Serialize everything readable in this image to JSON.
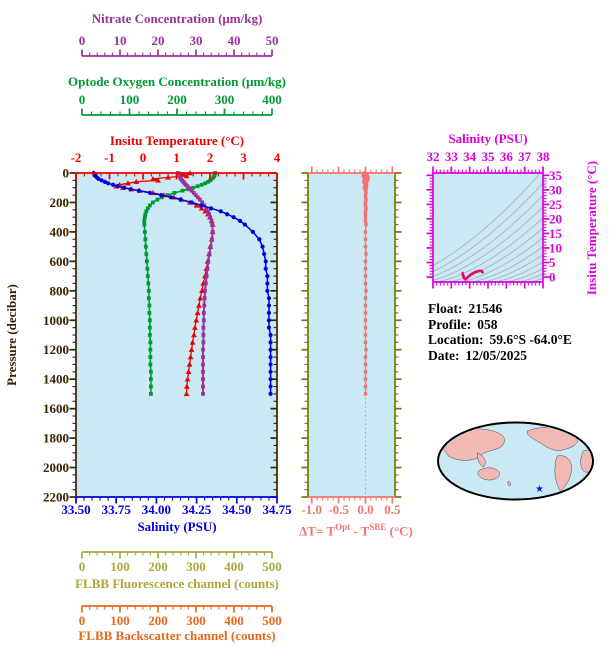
{
  "colors": {
    "plot_background": "#cbe9f4",
    "contours": "#a3aeb4",
    "map_land": "#f3b9b4",
    "map_ocean": "#cbe9f4",
    "map_outline": "#000000",
    "float_marker": "#0022ee",
    "ts_track_outer": "#ee1133",
    "ts_track_inner": "#dd00bb",
    "zero_reference": "#9aa0a6"
  },
  "axes": {
    "nitrate": {
      "label": "Nitrate Concentration (μm/kg)",
      "color": "#993399",
      "min": 0,
      "max": 50,
      "tick_values": [
        0,
        10,
        20,
        30,
        40,
        50
      ],
      "tick_labels": [
        "0",
        "10",
        "20",
        "30",
        "40",
        "50"
      ],
      "minor": 5
    },
    "oxygen": {
      "label": "Optode Oxygen Concentration (μm/kg)",
      "color": "#009933",
      "min": 0,
      "max": 400,
      "tick_values": [
        0,
        100,
        200,
        300,
        400
      ],
      "tick_labels": [
        "0",
        "100",
        "200",
        "300",
        "400"
      ],
      "minor": 5
    },
    "insitu_temp": {
      "label": "Insitu Temperature (°C)",
      "color": "#ee0000",
      "min": -2,
      "max": 4,
      "tick_values": [
        -2,
        -1,
        0,
        1,
        2,
        3,
        4
      ],
      "tick_labels": [
        "-2",
        "-1",
        "0",
        "1",
        "2",
        "3",
        "4"
      ],
      "minor": 4
    },
    "pressure": {
      "label": "Pressure (decibar)",
      "color": "#3a2300",
      "min": 0,
      "max": 2200,
      "tick_values": [
        0,
        200,
        400,
        600,
        800,
        1000,
        1200,
        1400,
        1600,
        1800,
        2000,
        2200
      ],
      "tick_labels": [
        "0",
        "200",
        "400",
        "600",
        "800",
        "1000",
        "1200",
        "1400",
        "1600",
        "1800",
        "2000",
        "2200"
      ],
      "minor": 4
    },
    "salinity": {
      "label": "Salinity (PSU)",
      "color": "#0000dd",
      "min": 33.5,
      "max": 34.75,
      "tick_values": [
        33.5,
        33.75,
        34.0,
        34.25,
        34.5,
        34.75
      ],
      "tick_labels": [
        "33.50",
        "33.75",
        "34.00",
        "34.25",
        "34.50",
        "34.75"
      ],
      "minor": 5
    },
    "fluorescence": {
      "label": "FLBB Fluorescence channel (counts)",
      "color": "#a8a83c",
      "min": 0,
      "max": 500,
      "tick_values": [
        0,
        100,
        200,
        300,
        400,
        500
      ],
      "tick_labels": [
        "0",
        "100",
        "200",
        "300",
        "400",
        "500"
      ],
      "minor": 5
    },
    "backscatter": {
      "label": "FLBB Backscatter channel (counts)",
      "color": "#e8671b",
      "min": 0,
      "max": 500,
      "tick_values": [
        0,
        100,
        200,
        300,
        400,
        500
      ],
      "tick_labels": [
        "0",
        "100",
        "200",
        "300",
        "400",
        "500"
      ],
      "minor": 5
    },
    "delta_t": {
      "label_parts": {
        "p1": "ΔT= T",
        "sup1": "Opt",
        "p2": " - T",
        "sup2": "SBE",
        "p3": " (°C)"
      },
      "color": "#f4736e",
      "frame_color": "#767600",
      "min": -1.0,
      "max": 0.5,
      "tick_values": [
        -1.0,
        -0.5,
        0.0,
        0.5
      ],
      "tick_labels": [
        "-1.0",
        "-0.5",
        "0.0",
        "0.5"
      ],
      "minor": 5
    },
    "ts_salinity": {
      "label": "Salinity (PSU)",
      "color": "#dd00dd",
      "min": 32,
      "max": 38,
      "tick_values": [
        32,
        33,
        34,
        35,
        36,
        37,
        38
      ],
      "tick_labels": [
        "32",
        "33",
        "34",
        "35",
        "36",
        "37",
        "38"
      ],
      "minor": 5
    },
    "ts_temperature": {
      "label": "Insitu Temperature (°C)",
      "color": "#dd00dd",
      "min": 0,
      "max": 35,
      "tick_values": [
        0,
        5,
        10,
        15,
        20,
        25,
        30,
        35
      ],
      "tick_labels": [
        "0",
        "5",
        "10",
        "15",
        "20",
        "25",
        "30",
        "35"
      ],
      "minor": 5
    }
  },
  "info": {
    "lines": [
      {
        "label": "Float:",
        "value": "21546"
      },
      {
        "label": "Profile:",
        "value": "058"
      },
      {
        "label": "Location:",
        "value": "59.6°S  -64.0°E"
      },
      {
        "label": "Date:",
        "value": "12/05/2025"
      }
    ]
  },
  "chart_data": [
    {
      "id": "profiles",
      "type": "line",
      "ylabel": "Pressure (decibar)",
      "ylim": [
        0,
        2200
      ],
      "pressure": [
        0,
        10,
        20,
        30,
        40,
        50,
        60,
        70,
        80,
        90,
        100,
        110,
        120,
        135,
        150,
        165,
        180,
        200,
        220,
        240,
        260,
        280,
        300,
        325,
        350,
        400,
        450,
        500,
        550,
        600,
        650,
        700,
        750,
        800,
        850,
        900,
        950,
        1000,
        1050,
        1100,
        1150,
        1200,
        1250,
        1300,
        1350,
        1400,
        1450,
        1500
      ],
      "series": [
        {
          "name": "Insitu Temperature (°C)",
          "axis": "insitu_temp",
          "color": "#ee0000",
          "marker": "triangle",
          "values": [
            1.4,
            1.15,
            1.3,
            0.75,
            0.3,
            0.45,
            -0.2,
            -0.45,
            -0.7,
            -0.8,
            -0.6,
            -0.35,
            -0.1,
            0.3,
            0.62,
            0.92,
            1.15,
            1.4,
            1.6,
            1.75,
            1.86,
            1.94,
            2.0,
            2.05,
            2.08,
            2.08,
            2.05,
            2.01,
            1.97,
            1.93,
            1.89,
            1.85,
            1.8,
            1.76,
            1.71,
            1.67,
            1.63,
            1.59,
            1.55,
            1.52,
            1.48,
            1.45,
            1.42,
            1.39,
            1.36,
            1.33,
            1.31,
            1.3
          ]
        },
        {
          "name": "Salinity (PSU)",
          "axis": "salinity",
          "color": "#0000dd",
          "marker": "circle",
          "values": [
            33.61,
            33.62,
            33.62,
            33.63,
            33.64,
            33.66,
            33.68,
            33.7,
            33.73,
            33.76,
            33.8,
            33.84,
            33.89,
            33.96,
            34.03,
            34.09,
            34.15,
            34.22,
            34.28,
            34.34,
            34.4,
            34.44,
            34.48,
            34.52,
            34.55,
            34.6,
            34.64,
            34.66,
            34.67,
            34.68,
            34.68,
            34.69,
            34.69,
            34.69,
            34.7,
            34.7,
            34.7,
            34.7,
            34.7,
            34.71,
            34.71,
            34.71,
            34.71,
            34.71,
            34.71,
            34.71,
            34.71,
            34.71
          ]
        },
        {
          "name": "Optode Oxygen Concentration (μm/kg)",
          "axis": "oxygen",
          "color": "#009933",
          "marker": "square",
          "values": [
            277,
            276,
            275,
            273,
            270,
            267,
            263,
            257,
            250,
            242,
            233,
            223,
            212,
            196,
            182,
            171,
            162,
            153,
            147,
            143,
            140,
            138,
            137,
            136,
            136,
            137,
            138,
            139,
            140,
            141,
            142,
            143,
            144,
            145,
            145,
            146,
            146,
            147,
            147,
            147,
            148,
            148,
            148,
            148,
            149,
            149,
            149,
            149
          ]
        },
        {
          "name": "Nitrate Concentration (μm/kg)",
          "axis": "nitrate",
          "color": "#993399",
          "marker": "square",
          "values": [
            25.4,
            25.5,
            25.7,
            25.9,
            26.1,
            26.4,
            26.7,
            27.0,
            27.3,
            27.7,
            28.0,
            28.4,
            28.8,
            29.3,
            29.8,
            30.3,
            30.8,
            31.4,
            31.9,
            32.4,
            32.8,
            33.1,
            33.4,
            33.7,
            33.9,
            34.0,
            33.8,
            33.5,
            33.2,
            32.9,
            32.7,
            32.5,
            32.3,
            32.1,
            32.0,
            31.9,
            31.8,
            31.8,
            31.7,
            31.7,
            31.7,
            31.6,
            31.6,
            31.6,
            31.6,
            31.6,
            31.6,
            31.6
          ]
        }
      ]
    },
    {
      "id": "delta_t",
      "type": "line",
      "xlabel": "ΔT= TOpt - TSBE (°C)",
      "xlim": [
        -1.0,
        0.5
      ],
      "ylim": [
        0,
        2200
      ],
      "pressure": [
        0,
        10,
        20,
        30,
        40,
        50,
        60,
        70,
        80,
        90,
        100,
        110,
        120,
        135,
        150,
        165,
        180,
        200,
        220,
        240,
        260,
        280,
        300,
        325,
        350,
        400,
        450,
        500,
        550,
        600,
        650,
        700,
        750,
        800,
        850,
        900,
        950,
        1000,
        1050,
        1100,
        1150,
        1200,
        1250,
        1300,
        1350,
        1400,
        1450,
        1500
      ],
      "series": [
        {
          "name": "ΔT",
          "color": "#f4736e",
          "marker": "square",
          "values": [
            -0.02,
            0.03,
            -0.04,
            0.05,
            -0.02,
            0.04,
            -0.03,
            0.02,
            -0.01,
            0.02,
            -0.02,
            0.01,
            0.0,
            0.01,
            0.0,
            0.0,
            0.01,
            0.0,
            0.0,
            0.01,
            0.0,
            0.0,
            0.0,
            0.0,
            0.01,
            0.0,
            0.0,
            0.0,
            0.01,
            0.0,
            0.0,
            0.0,
            0.0,
            0.01,
            0.0,
            0.0,
            0.0,
            0.0,
            0.0,
            0.0,
            0.0,
            0.01,
            0.0,
            0.0,
            0.0,
            0.0,
            0.0,
            0.0
          ]
        }
      ]
    },
    {
      "id": "ts_diagram",
      "type": "scatter",
      "xlabel": "Salinity (PSU)",
      "ylabel": "Insitu Temperature (°C)",
      "xlim": [
        32,
        38
      ],
      "ylim": [
        0,
        35
      ],
      "note": "profile track plotted from temperature and salinity series of the main profile; background shows density contour lines"
    }
  ]
}
